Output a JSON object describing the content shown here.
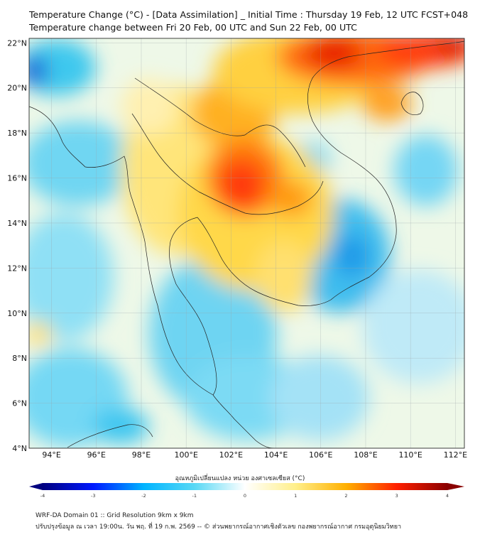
{
  "title_line1": "Temperature Change (°C) - [Data Assimilation] _ Initial Time : Thursday 19 Feb, 12 UTC FCST+048",
  "title_line2": "Temperature change between Fri 20 Feb, 00 UTC and Sun 22 Feb, 00 UTC",
  "map": {
    "lon_range": [
      93,
      112.4
    ],
    "lat_range": [
      4,
      22.2
    ],
    "lat_ticks": [
      "4°N",
      "6°N",
      "8°N",
      "10°N",
      "12°N",
      "14°N",
      "16°N",
      "18°N",
      "20°N",
      "22°N"
    ],
    "lon_ticks": [
      "94°E",
      "96°E",
      "98°E",
      "100°E",
      "102°E",
      "104°E",
      "106°E",
      "108°E",
      "110°E",
      "112°E"
    ],
    "grid": true
  },
  "colorbar": {
    "label": "อุณหภูมิเปลี่ยนแปลง หน่วย องศาเซลเซียส (°C)",
    "min": -4,
    "max": 4,
    "ticks": [
      "-4",
      "-3",
      "-2",
      "-1",
      "0",
      "1",
      "2",
      "3",
      "4"
    ],
    "colors": [
      "#00007f",
      "#0019ff",
      "#00b4ff",
      "#58d8f5",
      "#ffffff",
      "#ffef8a",
      "#ffb000",
      "#ff2000",
      "#8a0000"
    ]
  },
  "footer_line1": "WRF-DA Domain 01 :: Grid Resolution 9km x 9km",
  "footer_line2": "ปรับปรุงข้อมูล ณ เวลา 19:00น. วัน พฤ. ที่ 19 ก.พ. 2569 -- © ส่วนพยากรณ์อากาศเชิงตัวเลข กองพยากรณ์อากาศ กรมอุตุนิยมวิทยา"
}
